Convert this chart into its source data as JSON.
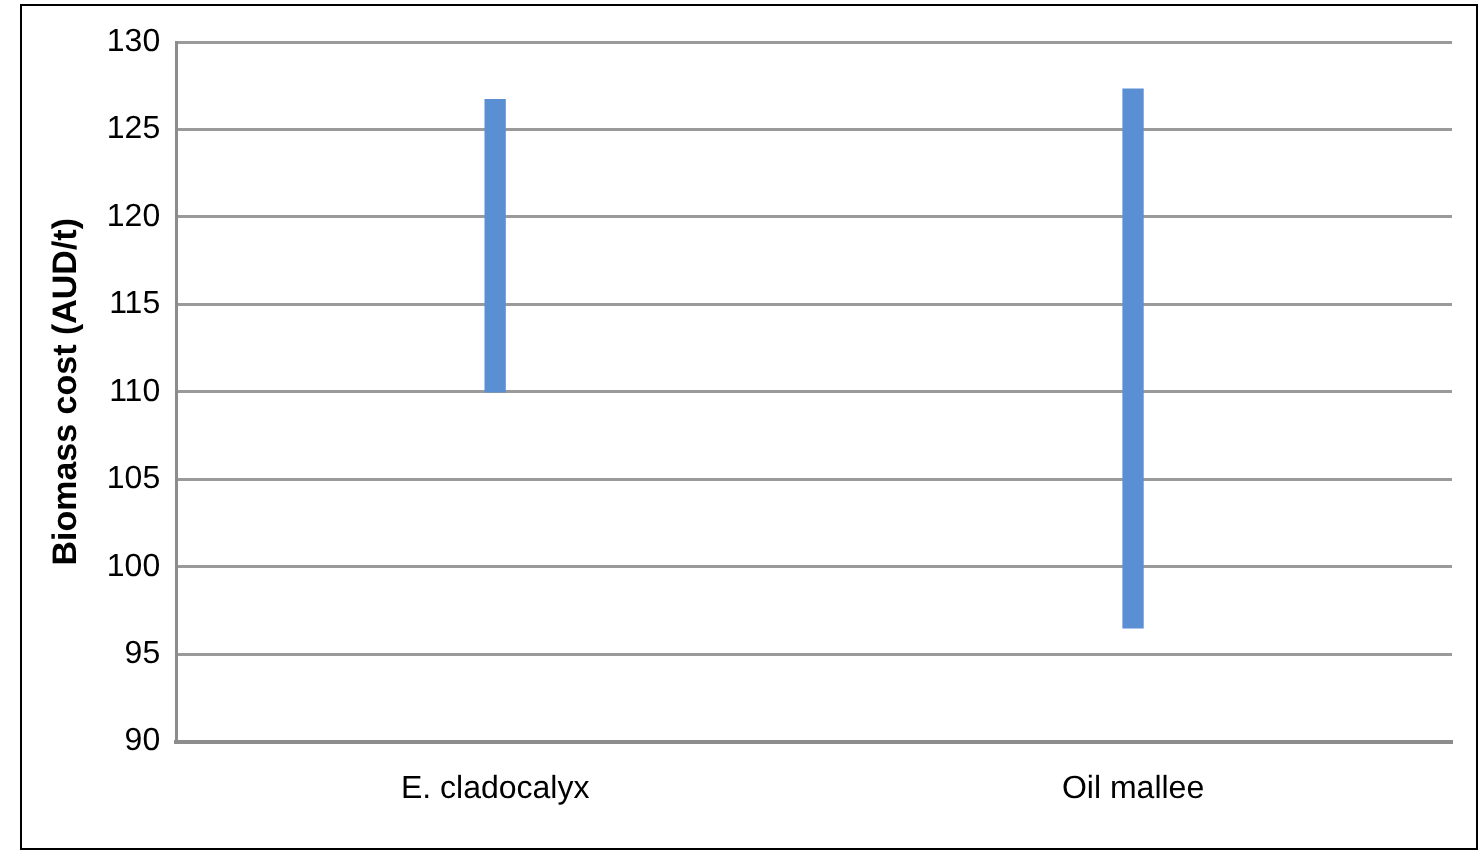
{
  "chart_data": {
    "type": "bar",
    "ylabel": "Biomass cost (AUD/t)",
    "categories": [
      "E. cladocalyx",
      "Oil mallee"
    ],
    "base": [
      110,
      96.5
    ],
    "values": [
      16.7,
      30.8
    ],
    "color": "#5a8fd3",
    "ylim": [
      90,
      130
    ],
    "yticks": [
      90,
      95,
      100,
      105,
      110,
      115,
      120,
      125,
      130
    ],
    "grid": "y"
  }
}
